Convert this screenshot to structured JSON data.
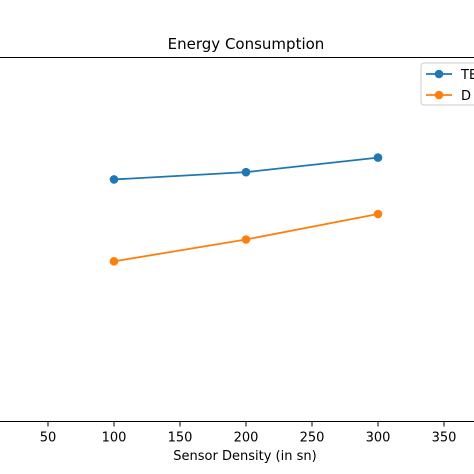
{
  "chart_data": {
    "type": "line",
    "title": "Energy Consumption",
    "xlabel": "Sensor Density (in sn)",
    "ylabel": "",
    "xlim": [
      25,
      375
    ],
    "ylim": [
      0,
      1
    ],
    "x_ticks": [
      50,
      100,
      150,
      200,
      250,
      300,
      350
    ],
    "grid": false,
    "legend_position": "top-right",
    "series": [
      {
        "name": "TE",
        "color": "#1f77b4",
        "x": [
          100,
          200,
          300
        ],
        "y": [
          0.665,
          0.685,
          0.725
        ]
      },
      {
        "name": "D",
        "color": "#ff7f0e",
        "x": [
          100,
          200,
          300
        ],
        "y": [
          0.44,
          0.5,
          0.57
        ]
      }
    ]
  }
}
